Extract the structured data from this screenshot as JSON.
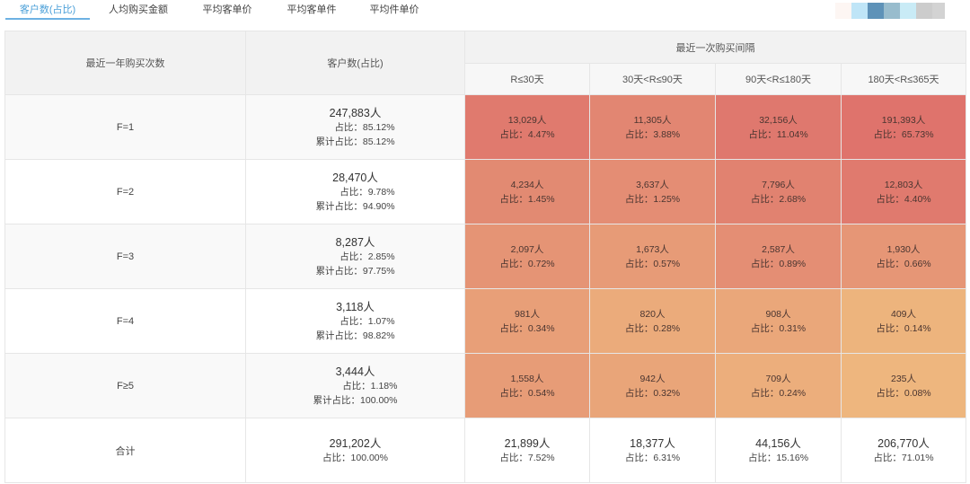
{
  "tabs": [
    {
      "label": "客户数(占比)",
      "active": true
    },
    {
      "label": "人均购买金额",
      "active": false
    },
    {
      "label": "平均客单价",
      "active": false
    },
    {
      "label": "平均客单件",
      "active": false
    },
    {
      "label": "平均件单价",
      "active": false
    }
  ],
  "legend_colors": [
    "#fdf6f3",
    "#bfe5f7",
    "#5e92b8",
    "#98bccd",
    "#c9ebf6",
    "#cccccc",
    "#d3d3d3",
    "#f7f7f7"
  ],
  "table": {
    "header": {
      "frequency_col": "最近一年购买次数",
      "customers_col": "客户数(占比)",
      "recency_group": "最近一次购买间隔",
      "recency_cols": [
        "R≤30天",
        "30天<R≤90天",
        "90天<R≤180天",
        "180天<R≤365天"
      ]
    },
    "rows": [
      {
        "label": "F=1",
        "count": "247,883人",
        "share": "占比：85.12%",
        "cumulative": "累计占比：85.12%",
        "cells": [
          {
            "count": "13,029人",
            "share": "占比：4.47%",
            "color": "#e07a6e"
          },
          {
            "count": "11,305人",
            "share": "占比：3.88%",
            "color": "#e28672"
          },
          {
            "count": "32,156人",
            "share": "占比：11.04%",
            "color": "#df786e"
          },
          {
            "count": "191,393人",
            "share": "占比：65.73%",
            "color": "#df736c"
          }
        ]
      },
      {
        "label": "F=2",
        "count": "28,470人",
        "share": "占比：9.78%",
        "cumulative": "累计占比：94.90%",
        "cells": [
          {
            "count": "4,234人",
            "share": "占比：1.45%",
            "color": "#e28a72"
          },
          {
            "count": "3,637人",
            "share": "占比：1.25%",
            "color": "#e48d74"
          },
          {
            "count": "7,796人",
            "share": "占比：2.68%",
            "color": "#e18270"
          },
          {
            "count": "12,803人",
            "share": "占比：4.40%",
            "color": "#e07a6e"
          }
        ]
      },
      {
        "label": "F=3",
        "count": "8,287人",
        "share": "占比：2.85%",
        "cumulative": "累计占比：97.75%",
        "cells": [
          {
            "count": "2,097人",
            "share": "占比：0.72%",
            "color": "#e59475"
          },
          {
            "count": "1,673人",
            "share": "占比：0.57%",
            "color": "#e79b77"
          },
          {
            "count": "2,587人",
            "share": "占比：0.89%",
            "color": "#e48e74"
          },
          {
            "count": "1,930人",
            "share": "占比：0.66%",
            "color": "#e69676"
          }
        ]
      },
      {
        "label": "F=4",
        "count": "3,118人",
        "share": "占比：1.07%",
        "cumulative": "累计占比：98.82%",
        "cells": [
          {
            "count": "981人",
            "share": "占比：0.34%",
            "color": "#e89f78"
          },
          {
            "count": "820人",
            "share": "占比：0.28%",
            "color": "#ebab7b"
          },
          {
            "count": "908人",
            "share": "占比：0.31%",
            "color": "#eaa77a"
          },
          {
            "count": "409人",
            "share": "占比：0.14%",
            "color": "#edb47d"
          }
        ]
      },
      {
        "label": "F≥5",
        "count": "3,444人",
        "share": "占比：1.18%",
        "cumulative": "累计占比：100.00%",
        "cells": [
          {
            "count": "1,558人",
            "share": "占比：0.54%",
            "color": "#e79c77"
          },
          {
            "count": "942人",
            "share": "占比：0.32%",
            "color": "#e9a579"
          },
          {
            "count": "709人",
            "share": "占比：0.24%",
            "color": "#ecae7c"
          },
          {
            "count": "235人",
            "share": "占比：0.08%",
            "color": "#eeb67e"
          }
        ]
      }
    ],
    "total": {
      "label": "合计",
      "count": "291,202人",
      "share": "占比：100.00%",
      "cells": [
        {
          "count": "21,899人",
          "share": "占比：7.52%"
        },
        {
          "count": "18,377人",
          "share": "占比：6.31%"
        },
        {
          "count": "44,156人",
          "share": "占比：15.16%"
        },
        {
          "count": "206,770人",
          "share": "占比：71.01%"
        }
      ]
    }
  }
}
